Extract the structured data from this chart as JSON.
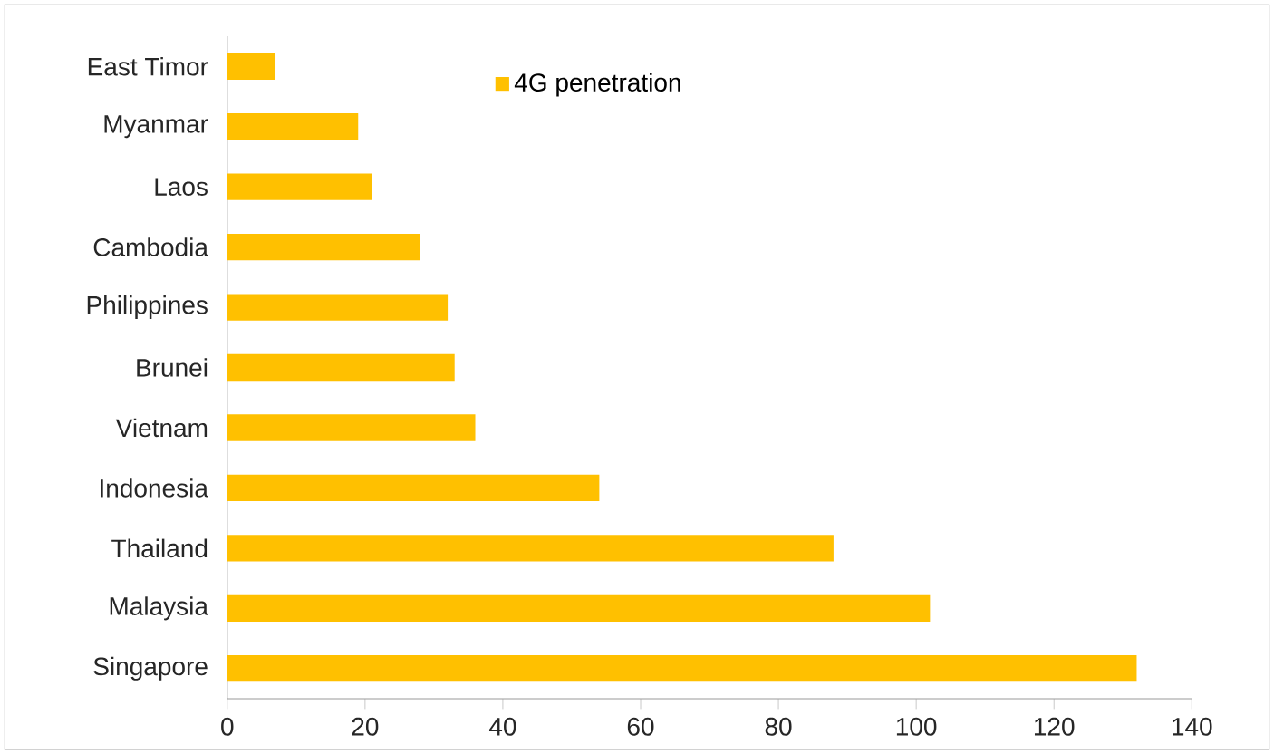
{
  "chart_data": {
    "type": "bar",
    "orientation": "horizontal",
    "categories": [
      "East Timor",
      "Myanmar",
      "Laos",
      "Cambodia",
      "Philippines",
      "Brunei",
      "Vietnam",
      "Indonesia",
      "Thailand",
      "Malaysia",
      "Singapore"
    ],
    "series": [
      {
        "name": "4G penetration",
        "color": "#ffc000",
        "values": [
          7,
          19,
          21,
          28,
          32,
          33,
          36,
          54,
          88,
          102,
          132
        ]
      }
    ],
    "xlim": [
      0,
      140
    ],
    "xticks": [
      0,
      20,
      40,
      60,
      80,
      100,
      120,
      140
    ],
    "grid": false,
    "legend": "top"
  }
}
